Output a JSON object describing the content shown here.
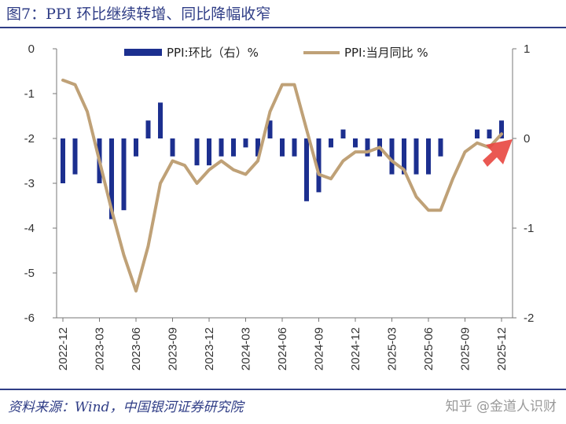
{
  "header": {
    "title": "图7：PPI 环比继续转增、同比降幅收窄"
  },
  "footer": {
    "source": "资料来源：Wind，中国银河证券研究院",
    "watermark": "知乎 @金道人识财"
  },
  "colors": {
    "bar": "#1c2f8f",
    "line": "#bfa177",
    "accent": "#e8463f",
    "rule": "#2f3d86"
  },
  "chart_data": {
    "type": "bar+line",
    "categories": [
      "2022-12",
      "2023-01",
      "2023-02",
      "2023-03",
      "2023-04",
      "2023-05",
      "2023-06",
      "2023-07",
      "2023-08",
      "2023-09",
      "2023-10",
      "2023-11",
      "2023-12",
      "2024-01",
      "2024-02",
      "2024-03",
      "2024-04",
      "2024-05",
      "2024-06",
      "2024-07",
      "2024-08",
      "2024-09",
      "2024-10",
      "2024-11",
      "2024-12",
      "2025-01",
      "2025-02",
      "2025-03",
      "2025-04",
      "2025-05",
      "2025-06",
      "2025-07",
      "2025-08",
      "2025-09",
      "2025-10",
      "2025-11",
      "2025-12"
    ],
    "x_tick_labels": [
      "2022-12",
      "2023-03",
      "2023-06",
      "2023-09",
      "2023-12",
      "2024-03",
      "2024-06",
      "2024-09",
      "2024-12",
      "2025-03",
      "2025-06",
      "2025-09",
      "2025-12"
    ],
    "series": [
      {
        "name": "PPI:环比（右）%",
        "type": "bar",
        "axis": "right",
        "values": [
          -0.5,
          -0.4,
          0.0,
          -0.5,
          -0.9,
          -0.8,
          -0.2,
          0.2,
          0.4,
          -0.2,
          0.0,
          -0.3,
          -0.3,
          -0.2,
          -0.2,
          -0.1,
          -0.2,
          0.2,
          -0.2,
          -0.2,
          -0.7,
          -0.6,
          -0.1,
          0.1,
          -0.1,
          -0.2,
          -0.2,
          -0.4,
          -0.4,
          -0.4,
          -0.4,
          -0.2,
          0.0,
          0.0,
          0.1,
          0.1,
          0.2
        ]
      },
      {
        "name": "PPI:当月同比 %",
        "type": "line",
        "axis": "left",
        "values": [
          -0.7,
          -0.8,
          -1.4,
          -2.5,
          -3.6,
          -4.6,
          -5.4,
          -4.4,
          -3.0,
          -2.5,
          -2.6,
          -3.0,
          -2.7,
          -2.5,
          -2.7,
          -2.8,
          -2.5,
          -1.4,
          -0.8,
          -0.8,
          -1.8,
          -2.8,
          -2.9,
          -2.5,
          -2.3,
          -2.3,
          -2.2,
          -2.5,
          -2.7,
          -3.3,
          -3.6,
          -3.6,
          -2.9,
          -2.3,
          -2.1,
          -2.2,
          -1.9
        ]
      }
    ],
    "y_left": {
      "ticks": [
        "0",
        "-1",
        "-2",
        "-3",
        "-4",
        "-5",
        "-6"
      ],
      "range": [
        -6,
        0
      ]
    },
    "y_right": {
      "ticks": [
        "1",
        "0",
        "-1",
        "-2"
      ],
      "range": [
        -2,
        1
      ]
    },
    "grid": false,
    "legend": "top"
  }
}
